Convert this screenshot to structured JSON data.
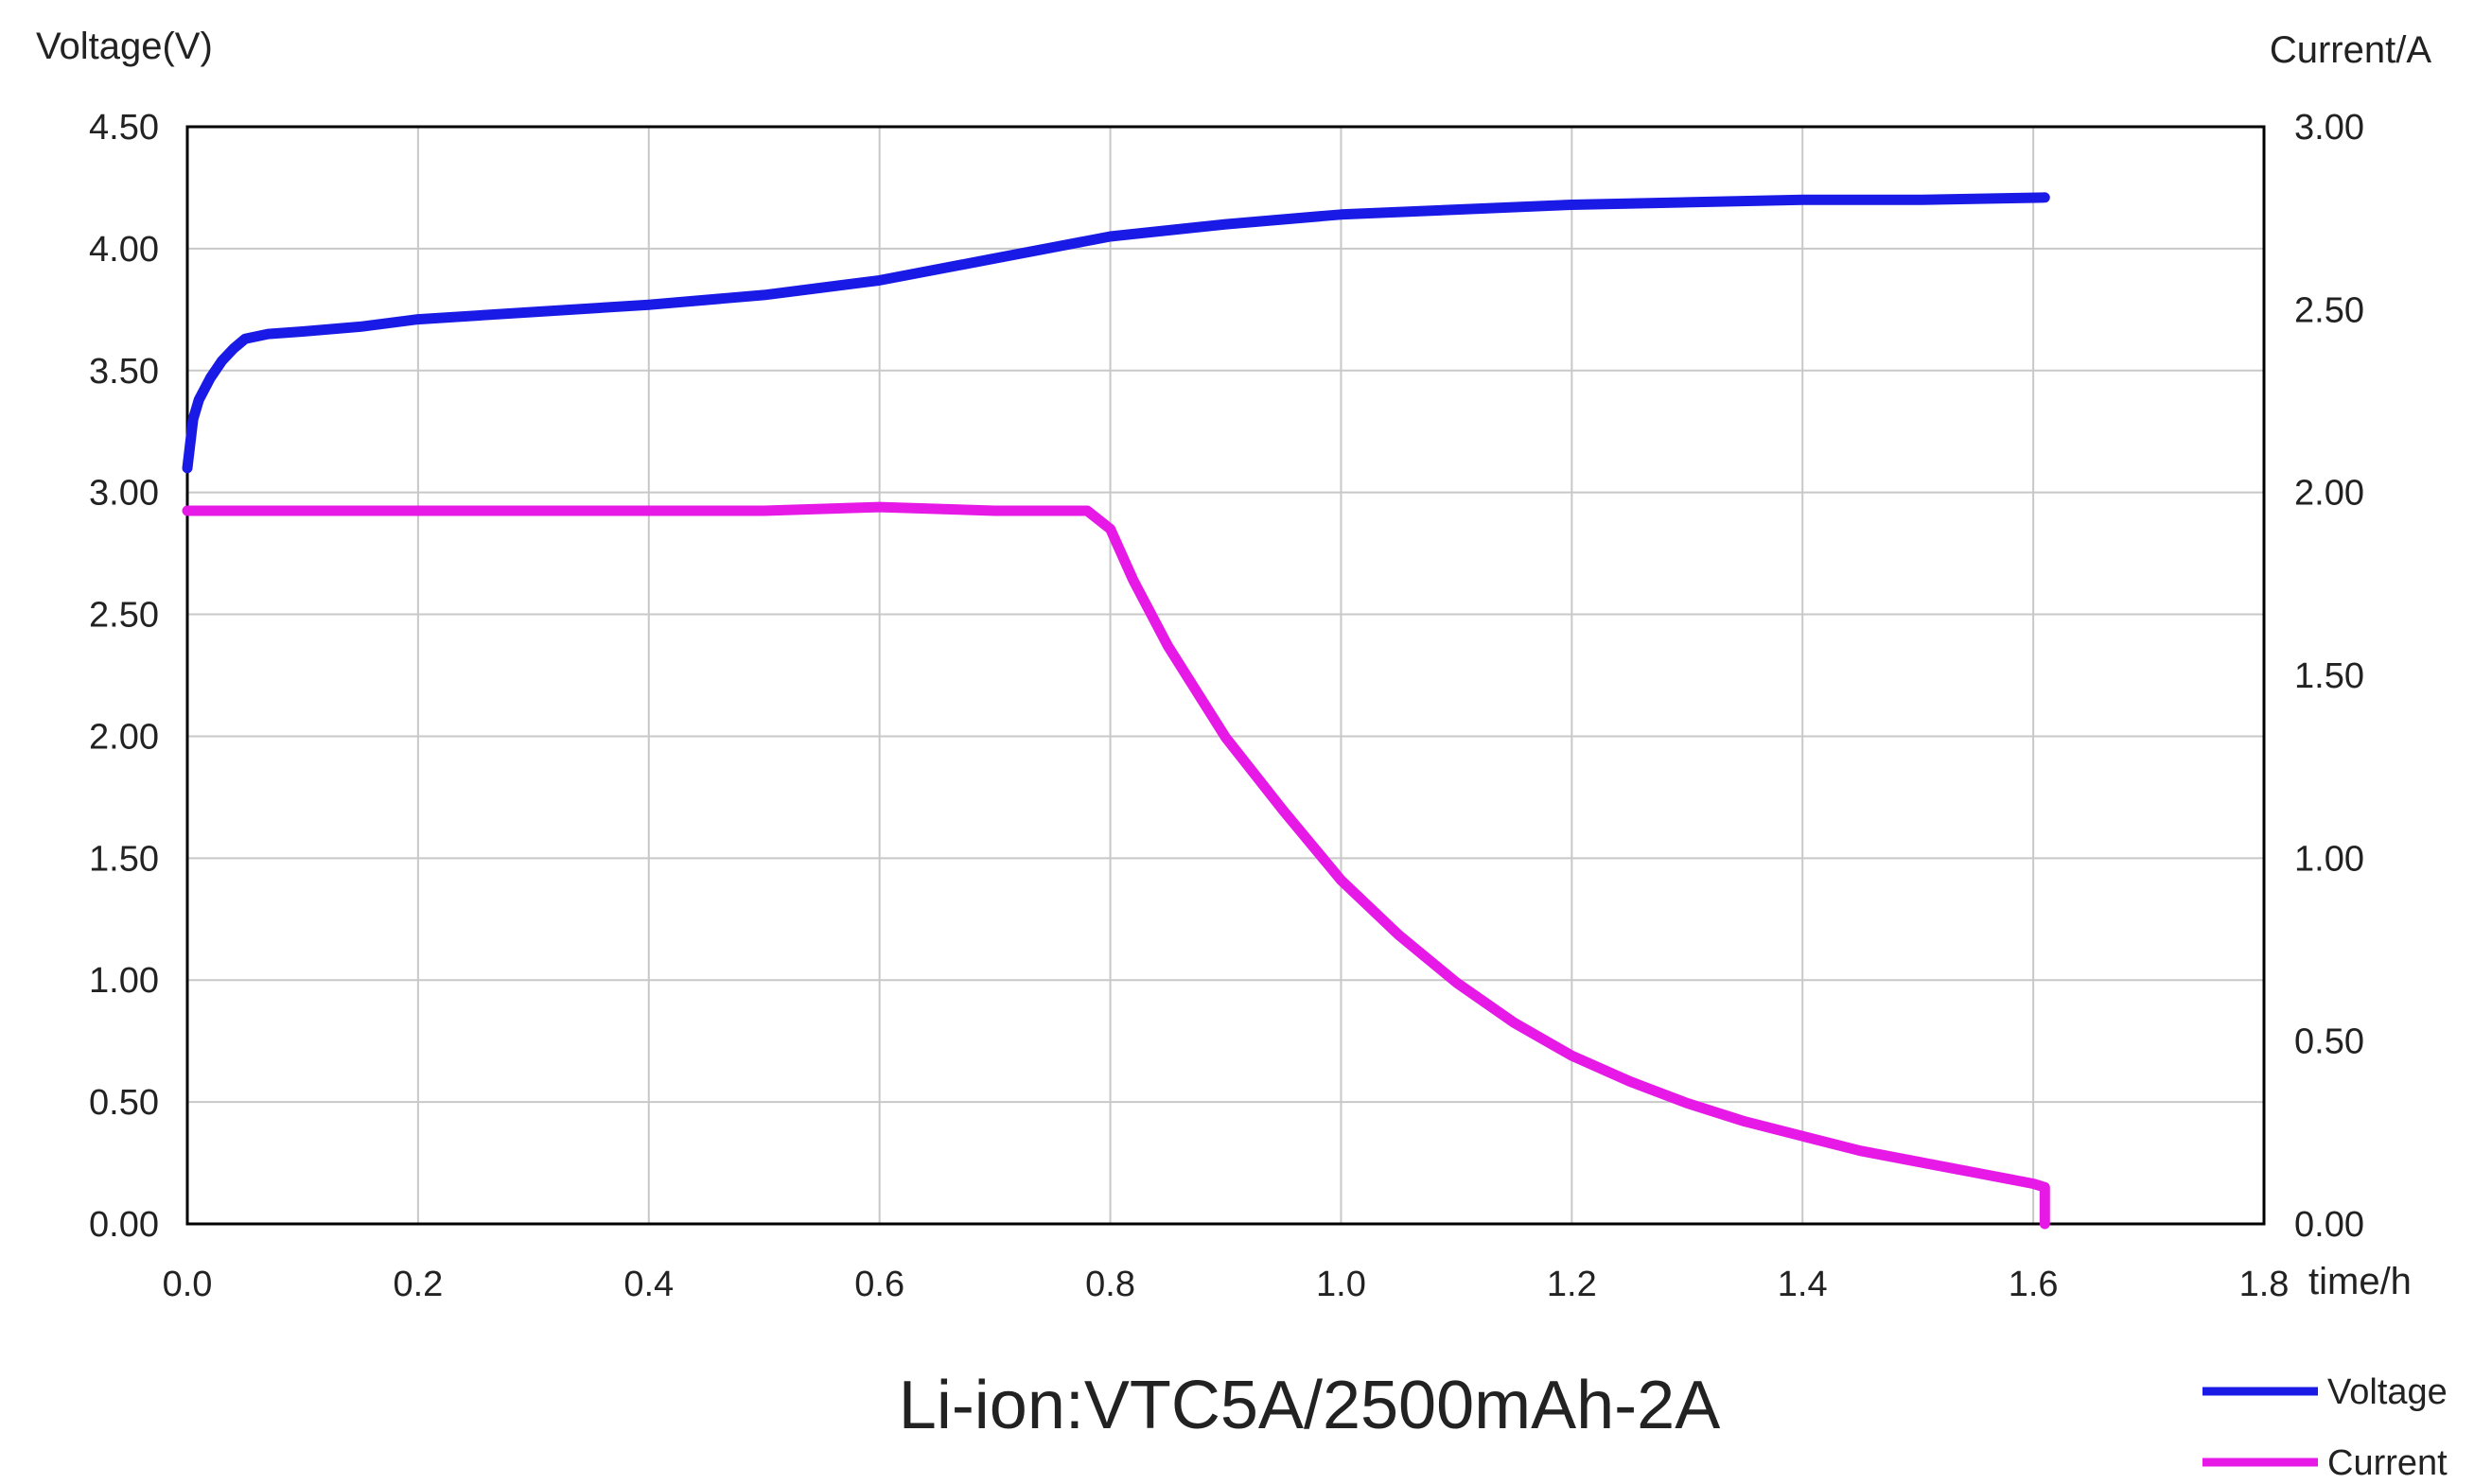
{
  "chart_data": {
    "type": "line",
    "title": "Li-ion:VTC5A/2500mAh-2A",
    "xlabel": "time/h",
    "ylabel_left": "Voltage(V)",
    "ylabel_right": "Current/A",
    "xlim": [
      0,
      1.8
    ],
    "ylim_left": [
      0,
      4.5
    ],
    "ylim_right": [
      0,
      3.0
    ],
    "grid": true,
    "legend_position": "bottom-right",
    "x_ticks": [
      "0.0",
      "0.2",
      "0.4",
      "0.6",
      "0.8",
      "1.0",
      "1.2",
      "1.4",
      "1.6",
      "1.8"
    ],
    "y_left_ticks": [
      "0.00",
      "0.50",
      "1.00",
      "1.50",
      "2.00",
      "2.50",
      "3.00",
      "3.50",
      "4.00",
      "4.50"
    ],
    "y_right_ticks": [
      "0.00",
      "0.50",
      "1.00",
      "1.50",
      "2.00",
      "2.50",
      "3.00"
    ],
    "series": [
      {
        "name": "Voltage",
        "axis": "left",
        "color": "#1a1ae6",
        "x": [
          0.0,
          0.005,
          0.01,
          0.02,
          0.03,
          0.04,
          0.05,
          0.07,
          0.1,
          0.15,
          0.2,
          0.3,
          0.4,
          0.5,
          0.6,
          0.7,
          0.8,
          0.9,
          1.0,
          1.1,
          1.2,
          1.3,
          1.4,
          1.5,
          1.61
        ],
        "values": [
          3.1,
          3.3,
          3.38,
          3.47,
          3.54,
          3.59,
          3.63,
          3.65,
          3.66,
          3.68,
          3.71,
          3.74,
          3.77,
          3.81,
          3.87,
          3.96,
          4.05,
          4.1,
          4.14,
          4.16,
          4.18,
          4.19,
          4.2,
          4.2,
          4.21
        ]
      },
      {
        "name": "Current",
        "axis": "right",
        "color": "#e619e6",
        "x": [
          0.0,
          0.1,
          0.2,
          0.3,
          0.4,
          0.5,
          0.6,
          0.7,
          0.78,
          0.8,
          0.82,
          0.85,
          0.9,
          0.95,
          1.0,
          1.05,
          1.1,
          1.15,
          1.2,
          1.25,
          1.3,
          1.35,
          1.4,
          1.45,
          1.5,
          1.55,
          1.6,
          1.61,
          1.61
        ],
        "values": [
          1.95,
          1.95,
          1.95,
          1.95,
          1.95,
          1.95,
          1.96,
          1.95,
          1.95,
          1.9,
          1.76,
          1.58,
          1.33,
          1.13,
          0.94,
          0.79,
          0.66,
          0.55,
          0.46,
          0.39,
          0.33,
          0.28,
          0.24,
          0.2,
          0.17,
          0.14,
          0.11,
          0.1,
          0.0
        ]
      }
    ]
  }
}
